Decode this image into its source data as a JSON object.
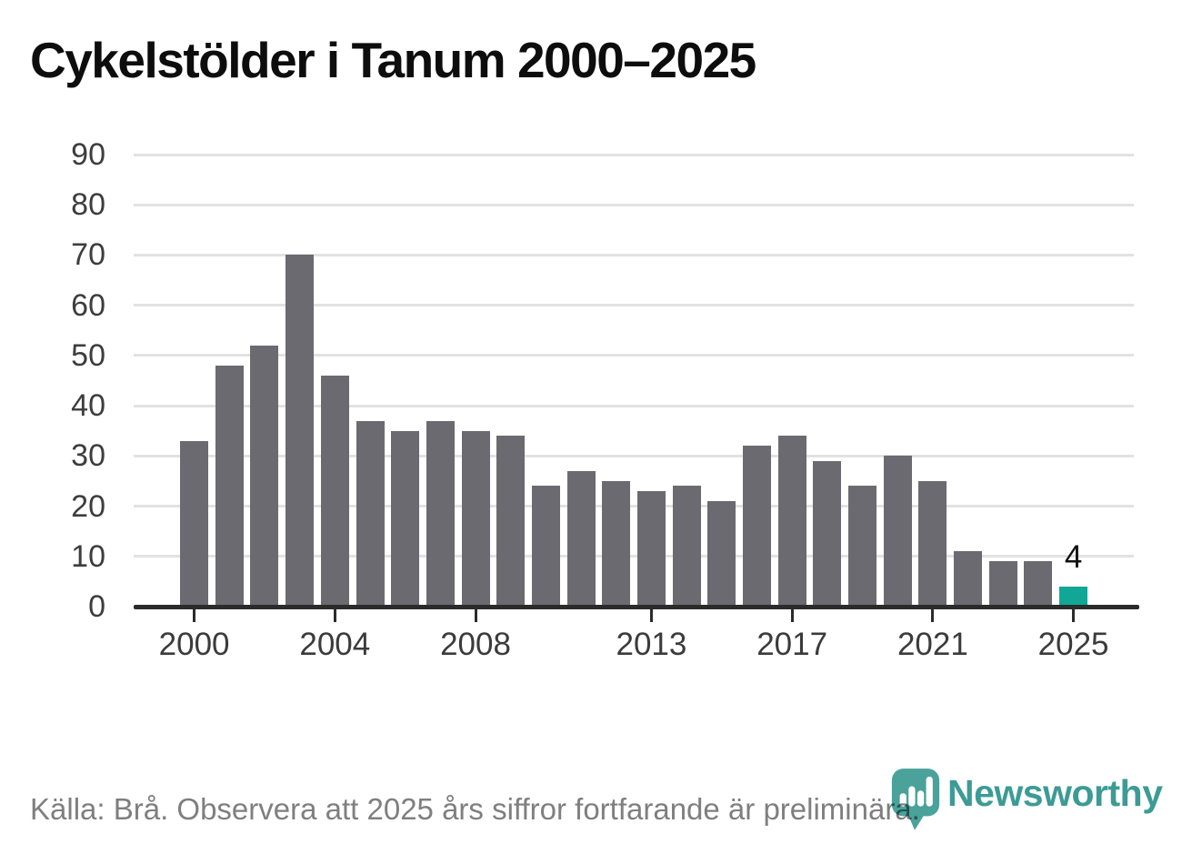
{
  "title": "Cykelstölder i Tanum 2000–2025",
  "footer": {
    "source_note": "Källa: Brå. Observera att 2025 års siffror fortfarande är preliminära."
  },
  "logo": {
    "name": "Newsworthy",
    "wordmark_color": "#3d9b95",
    "icon_color": "#4aa29b",
    "icon": "newsworthy-pin-barchart-icon"
  },
  "colors": {
    "bar": "#6a6a70",
    "highlight_bar": "#10a796",
    "gridline": "#e2e2e2",
    "axis": "#2b2b2b",
    "axis_label": "#3b3b3b",
    "title_text": "#0d0d0d",
    "footer_text": "#7f7f7f",
    "value_label": "#111111"
  },
  "chart_data": {
    "type": "bar",
    "title": "Cykelstölder i Tanum 2000–2025",
    "xlabel": "",
    "ylabel": "",
    "x": [
      2000,
      2001,
      2002,
      2003,
      2004,
      2005,
      2006,
      2007,
      2008,
      2009,
      2010,
      2011,
      2012,
      2013,
      2014,
      2015,
      2016,
      2017,
      2018,
      2019,
      2020,
      2021,
      2022,
      2023,
      2024,
      2025
    ],
    "values": [
      33,
      48,
      52,
      70,
      46,
      37,
      35,
      37,
      35,
      34,
      24,
      27,
      25,
      23,
      24,
      21,
      32,
      34,
      29,
      24,
      30,
      25,
      11,
      9,
      9,
      4
    ],
    "highlight_index": 25,
    "highlight_value_label": "4",
    "ylim": [
      0,
      90
    ],
    "ytick_interval": 10,
    "yticks": [
      0,
      10,
      20,
      30,
      40,
      50,
      60,
      70,
      80,
      90
    ],
    "xticks": [
      2000,
      2004,
      2008,
      2013,
      2017,
      2021,
      2025
    ],
    "grid": true,
    "legend": false
  }
}
